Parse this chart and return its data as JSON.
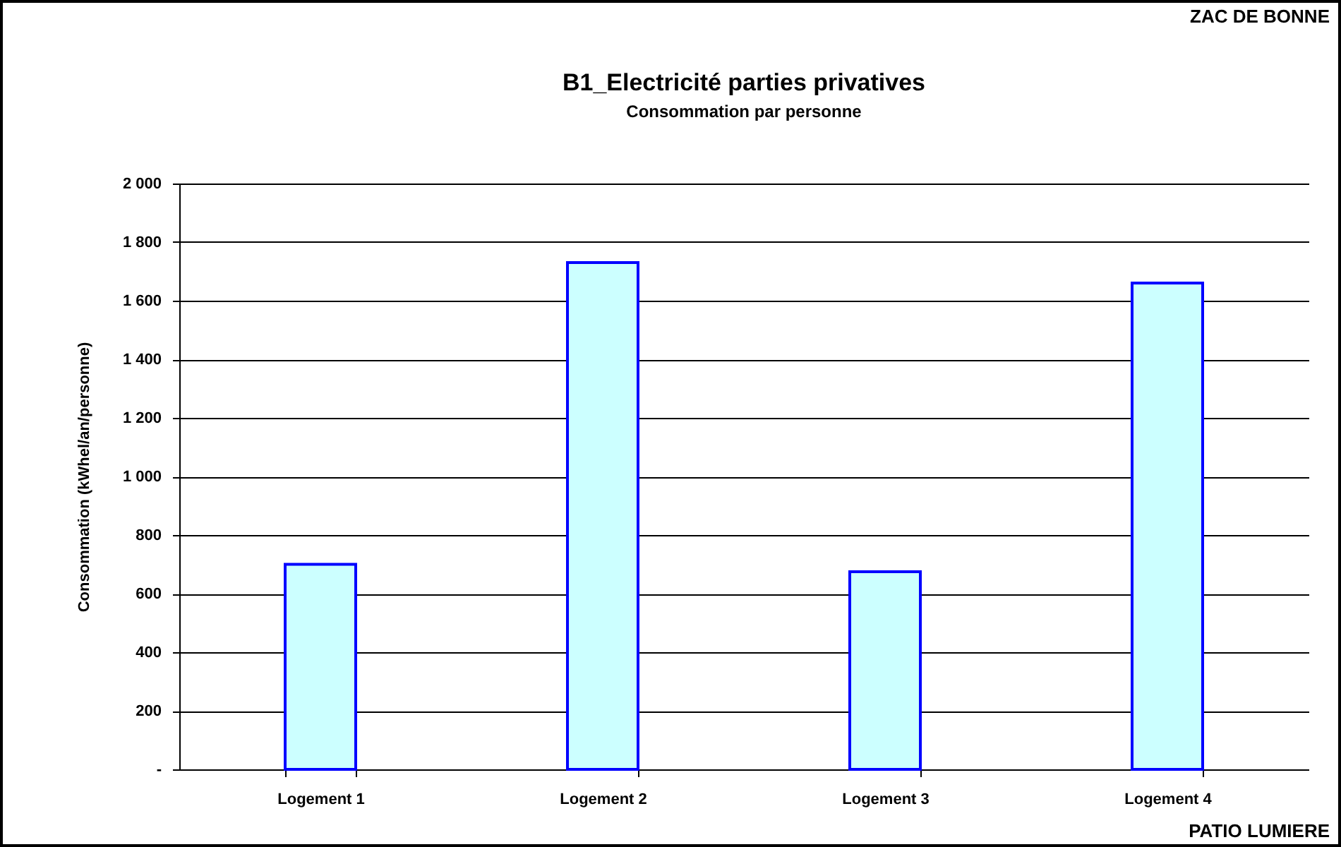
{
  "chart_data": {
    "type": "bar",
    "title": "B1_Electricité parties privatives",
    "subtitle": "Consommation par personne",
    "ylabel": "Consommation (kWhel/an/personne)",
    "categories": [
      "Logement 1",
      "Logement 2",
      "Logement 3",
      "Logement 4"
    ],
    "values": [
      700,
      1730,
      675,
      1660
    ],
    "color": "#ccffff",
    "ylim": [
      0,
      2000
    ],
    "yticks": [
      {
        "value": 0,
        "label": "-"
      },
      {
        "value": 200,
        "label": "200"
      },
      {
        "value": 400,
        "label": "400"
      },
      {
        "value": 600,
        "label": "600"
      },
      {
        "value": 800,
        "label": "800"
      },
      {
        "value": 1000,
        "label": "1 000"
      },
      {
        "value": 1200,
        "label": "1 200"
      },
      {
        "value": 1400,
        "label": "1 400"
      },
      {
        "value": 1600,
        "label": "1 600"
      },
      {
        "value": 1800,
        "label": "1 800"
      },
      {
        "value": 2000,
        "label": "2 000"
      }
    ],
    "grid": "y",
    "legend": false,
    "annotations": [
      "ZAC DE BONNE",
      "PATIO LUMIERE"
    ]
  }
}
